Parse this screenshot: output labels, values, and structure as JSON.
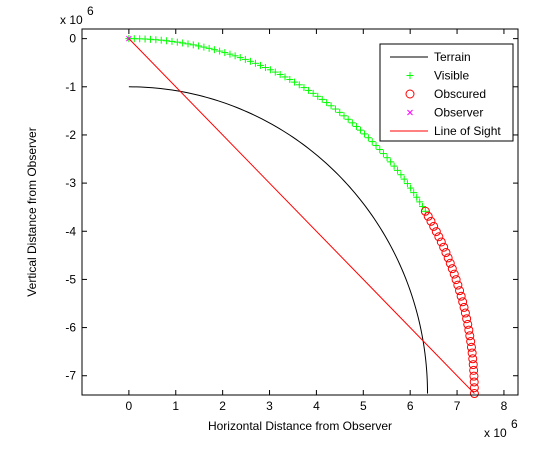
{
  "chart_data": {
    "type": "scatter",
    "xlabel": "Horizontal Distance from Observer",
    "ylabel": "Vertical Distance from Observer",
    "x_exponent": "x 10",
    "x_exponent_power": "6",
    "y_exponent": "x 10",
    "y_exponent_power": "6",
    "xlim": [
      -1000000,
      8300000
    ],
    "ylim": [
      -7400000,
      200000
    ],
    "x_ticks": [
      0,
      1000000,
      2000000,
      3000000,
      4000000,
      5000000,
      6000000,
      7000000,
      8000000
    ],
    "x_tick_labels": [
      "0",
      "1",
      "2",
      "3",
      "4",
      "5",
      "6",
      "7",
      "8"
    ],
    "y_ticks": [
      0,
      -1000000,
      -2000000,
      -3000000,
      -4000000,
      -5000000,
      -6000000,
      -7000000
    ],
    "y_tick_labels": [
      "0",
      "-1",
      "-2",
      "-3",
      "-4",
      "-5",
      "-6",
      "-7"
    ],
    "grid": false,
    "legend_position": "top-right",
    "series": [
      {
        "name": "Terrain",
        "style": "line",
        "color": "#000000",
        "radius": 6370000,
        "cx": 0,
        "cy": -7370000,
        "angle_from_deg": 0,
        "angle_to_deg": 90
      },
      {
        "name": "Visible",
        "style": "plus-marker",
        "color": "#00ff00",
        "radius": 7370000,
        "cx": 0,
        "cy": -7370000,
        "angle_from_deg": 30.9,
        "angle_to_deg": 90,
        "count": 67
      },
      {
        "name": "Obscured",
        "style": "circle-marker",
        "color": "#ff0000",
        "radius": 7370000,
        "cx": 0,
        "cy": -7370000,
        "angle_from_deg": 0,
        "angle_to_deg": 30.9,
        "count": 34
      },
      {
        "name": "Observer",
        "style": "x-marker",
        "color": "#ff00ff",
        "x": 0,
        "y": 0
      },
      {
        "name": "Line of Sight",
        "style": "line",
        "color": "#ff0000",
        "x": [
          0,
          7370000
        ],
        "y": [
          0,
          -7370000
        ]
      }
    ]
  }
}
